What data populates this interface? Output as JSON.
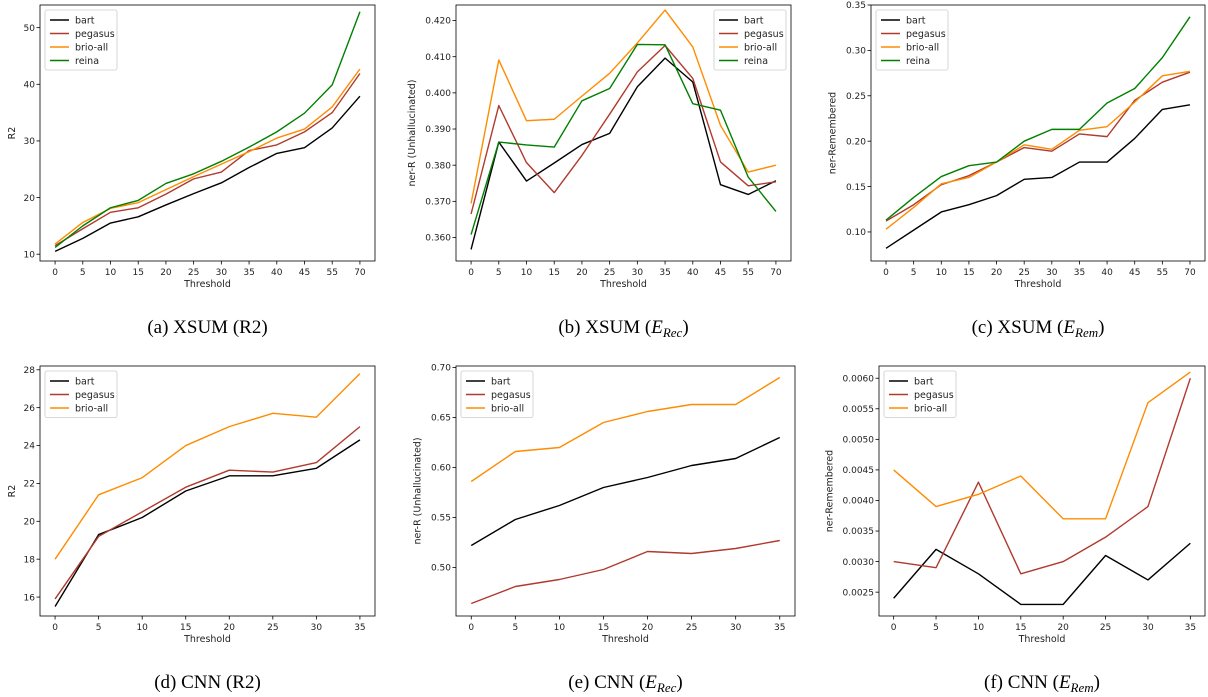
{
  "chart_data": [
    {
      "id": "a",
      "type": "line",
      "caption": "(a) XSUM (R2)",
      "xlabel": "Threshold",
      "ylabel": "R2",
      "categories": [
        "0",
        "5",
        "10",
        "15",
        "20",
        "25",
        "30",
        "35",
        "40",
        "45",
        "55",
        "70"
      ],
      "ylim": [
        8.8,
        54.0
      ],
      "yticks": [
        10,
        20,
        30,
        40,
        50
      ],
      "ytick_labels": [
        "10",
        "20",
        "30",
        "40",
        "50"
      ],
      "legend_position": "top-left",
      "series": [
        {
          "name": "bart",
          "color": "#000000",
          "values": [
            10.5,
            12.8,
            15.5,
            16.6,
            18.7,
            20.7,
            22.6,
            25.3,
            27.8,
            28.8,
            32.3,
            37.9
          ]
        },
        {
          "name": "pegasus",
          "color": "#b03a2e",
          "values": [
            11.5,
            14.5,
            17.4,
            18.2,
            20.6,
            23.3,
            24.5,
            28.3,
            29.3,
            31.6,
            35.0,
            41.9
          ]
        },
        {
          "name": "brio-all",
          "color": "#ff8c00",
          "values": [
            11.8,
            15.6,
            18.1,
            19.1,
            21.4,
            23.7,
            25.9,
            28.1,
            30.5,
            32.1,
            36.0,
            42.7
          ]
        },
        {
          "name": "reina",
          "color": "#008000",
          "values": [
            11.2,
            15.0,
            18.2,
            19.5,
            22.5,
            24.2,
            26.4,
            28.9,
            31.6,
            34.9,
            39.9,
            52.8
          ]
        }
      ]
    },
    {
      "id": "b",
      "type": "line",
      "caption_text": "(b) XSUM (",
      "caption_e": "E",
      "caption_sub": "Rec",
      "caption_close": ")",
      "xlabel": "Threshold",
      "ylabel": "ner-R (Unhallucinated)",
      "categories": [
        "0",
        "5",
        "10",
        "15",
        "20",
        "25",
        "30",
        "35",
        "40",
        "45",
        "55",
        "70"
      ],
      "ylim": [
        0.3535,
        0.4243
      ],
      "yticks": [
        0.36,
        0.37,
        0.38,
        0.39,
        0.4,
        0.41,
        0.42
      ],
      "ytick_labels": [
        "0.360",
        "0.370",
        "0.380",
        "0.390",
        "0.400",
        "0.410",
        "0.420"
      ],
      "legend_position": "top-right",
      "series": [
        {
          "name": "bart",
          "color": "#000000",
          "values": [
            0.3567,
            0.3864,
            0.3756,
            0.3806,
            0.3857,
            0.3888,
            0.4017,
            0.4096,
            0.403,
            0.3746,
            0.3719,
            0.3757
          ]
        },
        {
          "name": "pegasus",
          "color": "#b03a2e",
          "values": [
            0.3665,
            0.3965,
            0.3807,
            0.3724,
            0.3827,
            0.3941,
            0.4058,
            0.4131,
            0.404,
            0.3809,
            0.3743,
            0.3754
          ]
        },
        {
          "name": "brio-all",
          "color": "#ff8c00",
          "values": [
            0.3694,
            0.4091,
            0.3923,
            0.3927,
            0.3991,
            0.4054,
            0.4138,
            0.4229,
            0.4127,
            0.391,
            0.3781,
            0.38
          ]
        },
        {
          "name": "reina",
          "color": "#008000",
          "values": [
            0.3608,
            0.3864,
            0.3856,
            0.385,
            0.3978,
            0.4012,
            0.4134,
            0.4133,
            0.397,
            0.3952,
            0.3767,
            0.3672
          ]
        }
      ]
    },
    {
      "id": "c",
      "type": "line",
      "caption_text": "(c) XSUM (",
      "caption_e": "E",
      "caption_sub": "Rem",
      "caption_close": ")",
      "xlabel": "Threshold",
      "ylabel": "ner-Remembered",
      "categories": [
        "0",
        "5",
        "10",
        "15",
        "20",
        "25",
        "30",
        "35",
        "40",
        "45",
        "55",
        "70"
      ],
      "ylim": [
        0.068,
        0.35
      ],
      "yticks": [
        0.1,
        0.15,
        0.2,
        0.25,
        0.3,
        0.35
      ],
      "ytick_labels": [
        "0.10",
        "0.15",
        "0.20",
        "0.25",
        "0.30",
        "0.35"
      ],
      "legend_position": "top-left",
      "series": [
        {
          "name": "bart",
          "color": "#000000",
          "values": [
            0.082,
            0.102,
            0.122,
            0.13,
            0.14,
            0.158,
            0.16,
            0.177,
            0.177,
            0.203,
            0.235,
            0.24
          ]
        },
        {
          "name": "pegasus",
          "color": "#b03a2e",
          "values": [
            0.112,
            0.13,
            0.152,
            0.162,
            0.177,
            0.193,
            0.189,
            0.208,
            0.205,
            0.245,
            0.265,
            0.276
          ]
        },
        {
          "name": "brio-all",
          "color": "#ff8c00",
          "values": [
            0.103,
            0.127,
            0.153,
            0.16,
            0.177,
            0.196,
            0.191,
            0.212,
            0.216,
            0.243,
            0.272,
            0.277
          ]
        },
        {
          "name": "reina",
          "color": "#008000",
          "values": [
            0.113,
            0.138,
            0.161,
            0.173,
            0.177,
            0.2,
            0.213,
            0.213,
            0.242,
            0.258,
            0.292,
            0.337
          ]
        }
      ]
    },
    {
      "id": "d",
      "type": "line",
      "caption": "(d) CNN (R2)",
      "xlabel": "Threshold",
      "ylabel": "R2",
      "categories": [
        "0",
        "5",
        "10",
        "15",
        "20",
        "25",
        "30",
        "35"
      ],
      "ylim": [
        15.0,
        28.2
      ],
      "yticks": [
        16,
        18,
        20,
        22,
        24,
        26,
        28
      ],
      "ytick_labels": [
        "16",
        "18",
        "20",
        "22",
        "24",
        "26",
        "28"
      ],
      "legend_position": "top-left",
      "series": [
        {
          "name": "bart",
          "color": "#000000",
          "values": [
            15.5,
            19.3,
            20.2,
            21.6,
            22.4,
            22.4,
            22.8,
            24.3
          ]
        },
        {
          "name": "pegasus",
          "color": "#b03a2e",
          "values": [
            15.9,
            19.2,
            20.5,
            21.8,
            22.7,
            22.6,
            23.1,
            25.0
          ]
        },
        {
          "name": "brio-all",
          "color": "#ff8c00",
          "values": [
            18.0,
            21.4,
            22.3,
            24.0,
            25.0,
            25.7,
            25.5,
            27.8
          ]
        }
      ]
    },
    {
      "id": "e",
      "type": "line",
      "caption_text": "(e) CNN (",
      "caption_e": "E",
      "caption_sub": "Rec",
      "caption_close": ")",
      "xlabel": "Threshold",
      "ylabel": "ner-R (Unhallucinated)",
      "categories": [
        "0",
        "5",
        "10",
        "15",
        "20",
        "25",
        "30",
        "35"
      ],
      "ylim": [
        0.4515,
        0.7015
      ],
      "yticks": [
        0.5,
        0.55,
        0.6,
        0.65,
        0.7
      ],
      "ytick_labels": [
        "0.50",
        "0.55",
        "0.60",
        "0.65",
        "0.70"
      ],
      "legend_position": "top-left",
      "series": [
        {
          "name": "bart",
          "color": "#000000",
          "values": [
            0.522,
            0.548,
            0.562,
            0.58,
            0.59,
            0.602,
            0.609,
            0.63
          ]
        },
        {
          "name": "pegasus",
          "color": "#b03a2e",
          "values": [
            0.464,
            0.481,
            0.488,
            0.498,
            0.516,
            0.514,
            0.519,
            0.527
          ]
        },
        {
          "name": "brio-all",
          "color": "#ff8c00",
          "values": [
            0.586,
            0.616,
            0.62,
            0.645,
            0.656,
            0.663,
            0.663,
            0.69
          ]
        }
      ]
    },
    {
      "id": "f",
      "type": "line",
      "caption_text": "(f) CNN (",
      "caption_e": "E",
      "caption_sub": "Rem",
      "caption_close": ")",
      "xlabel": "Threshold",
      "ylabel": "ner-Remembered",
      "categories": [
        "0",
        "5",
        "10",
        "15",
        "20",
        "25",
        "30",
        "35"
      ],
      "ylim": [
        0.00211,
        0.0062
      ],
      "yticks": [
        0.0025,
        0.003,
        0.0035,
        0.004,
        0.0045,
        0.005,
        0.0055,
        0.006
      ],
      "ytick_labels": [
        "0.0025",
        "0.0030",
        "0.0035",
        "0.0040",
        "0.0045",
        "0.0050",
        "0.0055",
        "0.0060"
      ],
      "legend_position": "top-left",
      "series": [
        {
          "name": "bart",
          "color": "#000000",
          "values": [
            0.0024,
            0.0032,
            0.0028,
            0.0023,
            0.0023,
            0.0031,
            0.0027,
            0.0033
          ]
        },
        {
          "name": "pegasus",
          "color": "#b03a2e",
          "values": [
            0.003,
            0.0029,
            0.0043,
            0.0028,
            0.003,
            0.0034,
            0.0039,
            0.006
          ]
        },
        {
          "name": "brio-all",
          "color": "#ff8c00",
          "values": [
            0.0045,
            0.0039,
            0.0041,
            0.0044,
            0.0037,
            0.0037,
            0.0056,
            0.0061
          ]
        }
      ]
    }
  ]
}
